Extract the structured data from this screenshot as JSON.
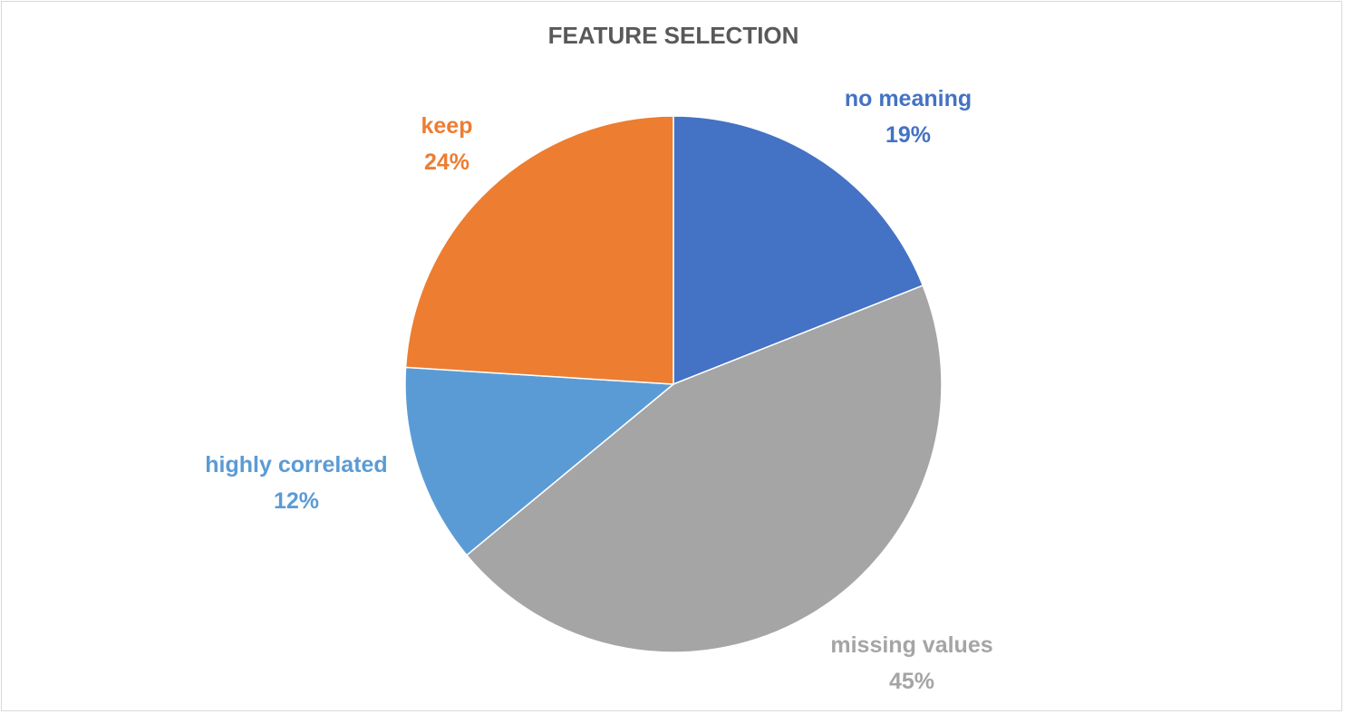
{
  "chart_data": {
    "type": "pie",
    "title": "FEATURE SELECTION",
    "start_angle_deg": 0,
    "direction": "clockwise",
    "legend": "none",
    "slices": [
      {
        "label": "no meaning",
        "value": 19,
        "percent_label": "19%",
        "color": "#4472C4"
      },
      {
        "label": "missing values",
        "value": 45,
        "percent_label": "45%",
        "color": "#A5A5A5"
      },
      {
        "label": "highly correlated",
        "value": 12,
        "percent_label": "12%",
        "color": "#5B9BD5"
      },
      {
        "label": "keep",
        "value": 24,
        "percent_label": "24%",
        "color": "#ED7D31"
      }
    ]
  }
}
